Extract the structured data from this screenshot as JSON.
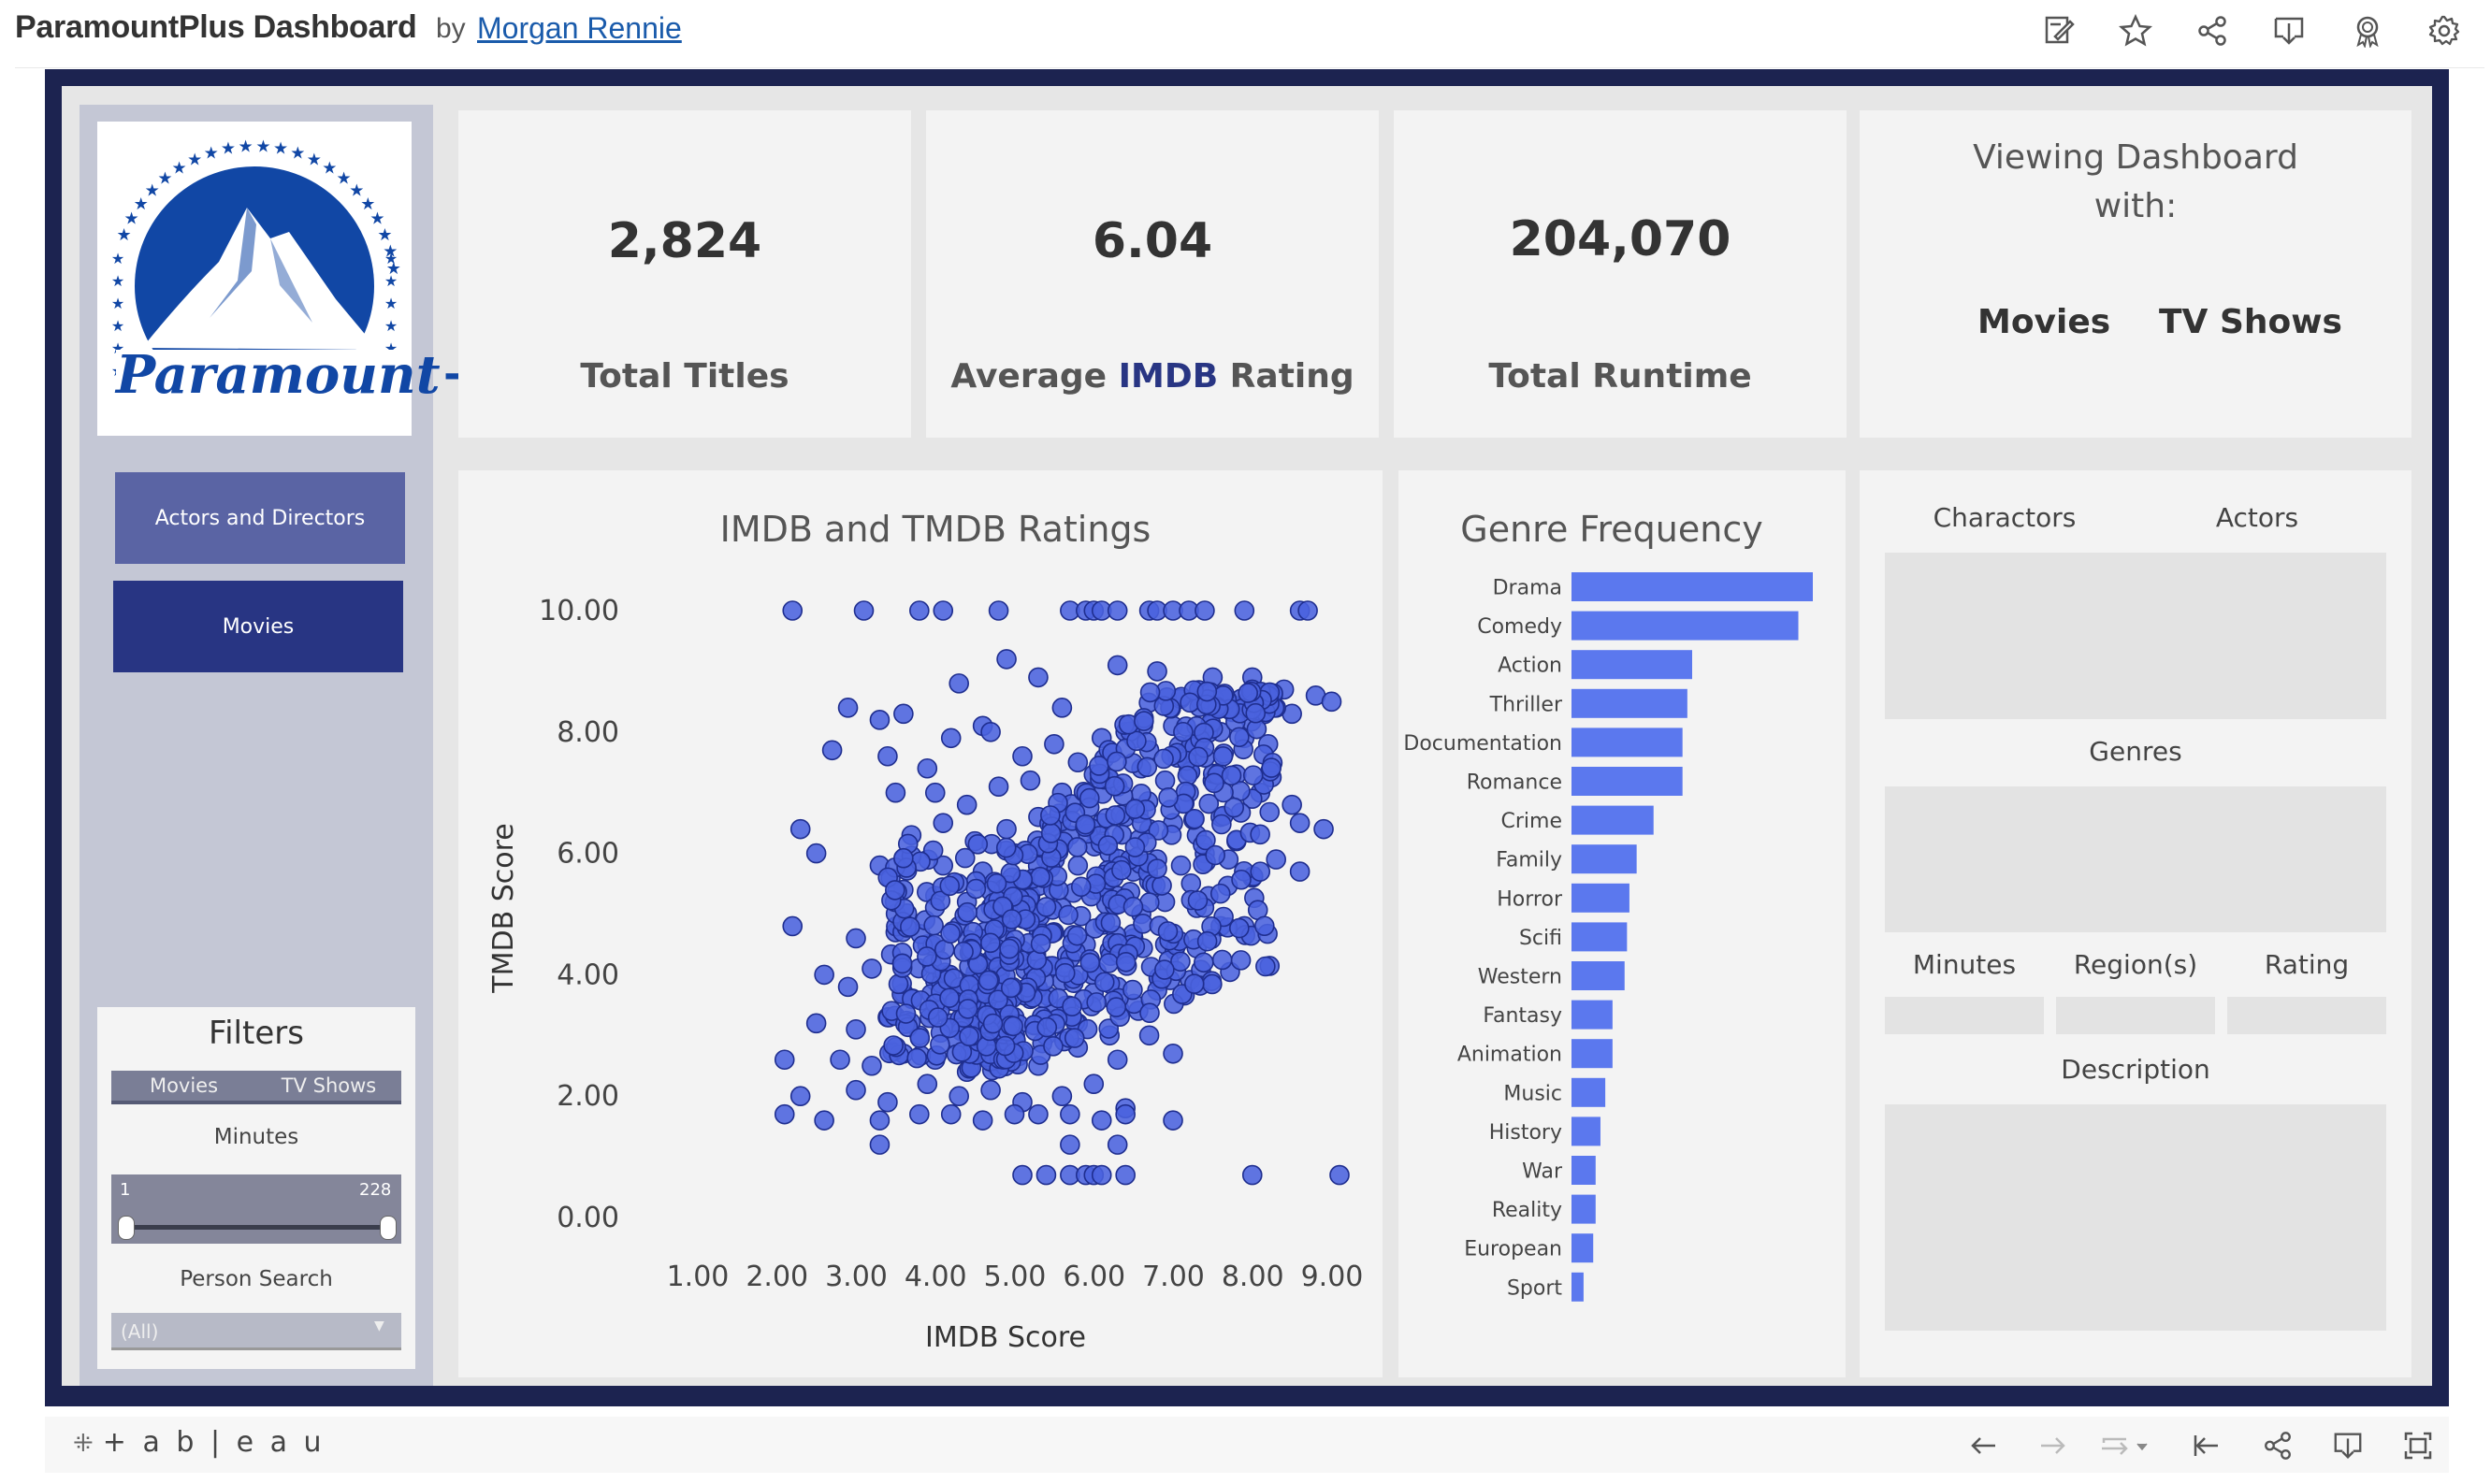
{
  "header": {
    "title": "ParamountPlus Dashboard",
    "by": "by",
    "author": "Morgan Rennie",
    "icons": [
      "edit-icon",
      "star-icon",
      "share-icon",
      "download-icon",
      "badge-icon",
      "settings-icon"
    ]
  },
  "sidebar": {
    "logo_text": "Paramount+",
    "nav": {
      "actors_directors": "Actors and Directors",
      "movies": "Movies"
    },
    "filters": {
      "title": "Filters",
      "tabs": [
        "Movies",
        "TV Shows"
      ],
      "minutes_label": "Minutes",
      "minutes_min": "1",
      "minutes_max": "228",
      "person_label": "Person Search",
      "person_value": "(All)"
    }
  },
  "kpis": {
    "total_titles": {
      "value": "2,824",
      "label": "Total Titles"
    },
    "avg_imdb": {
      "value": "6.04",
      "label_pre": "Average ",
      "label_em": "IMDB",
      "label_post": " Rating"
    },
    "total_runtime": {
      "value": "204,070",
      "label": "Total Runtime"
    }
  },
  "viewing": {
    "title_line1": "Viewing Dashboard",
    "title_line2": "with:",
    "option_movies": "Movies",
    "option_tv": "TV Shows"
  },
  "detail": {
    "charactors": "Charactors",
    "actors": "Actors",
    "genres": "Genres",
    "minutes": "Minutes",
    "regions": "Region(s)",
    "rating": "Rating",
    "description": "Description"
  },
  "chart_data": [
    {
      "type": "scatter",
      "title": "IMDB and TMDB Ratings",
      "xlabel": "IMDB Score",
      "ylabel": "TMDB Score",
      "xlim": [
        1,
        9
      ],
      "ylim": [
        0,
        10
      ],
      "x_ticks": [
        "1.00",
        "2.00",
        "3.00",
        "4.00",
        "5.00",
        "6.00",
        "7.00",
        "8.00",
        "9.00"
      ],
      "y_ticks": [
        "0.00",
        "2.00",
        "4.00",
        "6.00",
        "8.00",
        "10.00"
      ],
      "color": "#4a62de",
      "points": [
        [
          2.1,
          10
        ],
        [
          3.0,
          10
        ],
        [
          3.7,
          10
        ],
        [
          4.0,
          10
        ],
        [
          4.7,
          10
        ],
        [
          5.6,
          10
        ],
        [
          5.8,
          10
        ],
        [
          5.9,
          10
        ],
        [
          6.0,
          10
        ],
        [
          6.2,
          10
        ],
        [
          6.6,
          10
        ],
        [
          6.7,
          10
        ],
        [
          6.9,
          10
        ],
        [
          7.1,
          10
        ],
        [
          7.3,
          10
        ],
        [
          7.8,
          10
        ],
        [
          8.5,
          10
        ],
        [
          8.6,
          10
        ],
        [
          2.8,
          8.4
        ],
        [
          3.2,
          8.2
        ],
        [
          3.5,
          8.3
        ],
        [
          4.2,
          8.8
        ],
        [
          4.5,
          8.1
        ],
        [
          4.8,
          9.2
        ],
        [
          5.2,
          8.9
        ],
        [
          5.5,
          8.4
        ],
        [
          6.2,
          9.1
        ],
        [
          6.7,
          9.0
        ],
        [
          7.4,
          8.9
        ],
        [
          7.9,
          8.9
        ],
        [
          8.3,
          8.7
        ],
        [
          8.7,
          8.6
        ],
        [
          8.9,
          8.5
        ],
        [
          8.4,
          8.3
        ],
        [
          2.6,
          7.7
        ],
        [
          3.3,
          7.6
        ],
        [
          3.8,
          7.4
        ],
        [
          4.1,
          7.9
        ],
        [
          4.6,
          8.0
        ],
        [
          5.0,
          7.6
        ],
        [
          5.4,
          7.8
        ],
        [
          5.7,
          7.5
        ],
        [
          6.0,
          7.9
        ],
        [
          6.3,
          8.0
        ],
        [
          6.6,
          7.7
        ],
        [
          6.9,
          8.1
        ],
        [
          7.2,
          7.7
        ],
        [
          7.5,
          8.0
        ],
        [
          7.8,
          7.9
        ],
        [
          8.1,
          7.8
        ],
        [
          8.2,
          8.4
        ],
        [
          3.4,
          7.0
        ],
        [
          3.9,
          7.0
        ],
        [
          4.3,
          6.8
        ],
        [
          4.7,
          7.1
        ],
        [
          5.1,
          7.2
        ],
        [
          5.5,
          7.0
        ],
        [
          5.9,
          7.3
        ],
        [
          6.2,
          7.1
        ],
        [
          6.5,
          7.4
        ],
        [
          6.8,
          7.2
        ],
        [
          7.1,
          7.0
        ],
        [
          7.4,
          7.2
        ],
        [
          7.7,
          7.3
        ],
        [
          8.0,
          7.0
        ],
        [
          8.4,
          6.8
        ],
        [
          3.6,
          6.3
        ],
        [
          4.0,
          6.5
        ],
        [
          4.4,
          6.2
        ],
        [
          4.8,
          6.4
        ],
        [
          5.2,
          6.6
        ],
        [
          5.6,
          6.3
        ],
        [
          6.0,
          6.5
        ],
        [
          6.3,
          6.6
        ],
        [
          6.6,
          6.4
        ],
        [
          6.9,
          6.5
        ],
        [
          7.2,
          6.3
        ],
        [
          7.5,
          6.6
        ],
        [
          7.7,
          6.2
        ],
        [
          8.5,
          6.5
        ],
        [
          8.8,
          6.4
        ],
        [
          7.9,
          6.9
        ],
        [
          2.4,
          6.0
        ],
        [
          3.5,
          5.9
        ],
        [
          4.0,
          5.8
        ],
        [
          4.5,
          5.7
        ],
        [
          4.9,
          6.0
        ],
        [
          5.3,
          5.9
        ],
        [
          5.7,
          5.8
        ],
        [
          6.1,
          6.0
        ],
        [
          6.4,
          5.7
        ],
        [
          6.7,
          5.9
        ],
        [
          7.0,
          5.8
        ],
        [
          7.3,
          6.0
        ],
        [
          7.6,
          5.9
        ],
        [
          7.9,
          5.6
        ],
        [
          8.2,
          5.9
        ],
        [
          8.5,
          5.7
        ],
        [
          2.2,
          6.4
        ],
        [
          3.2,
          5.8
        ],
        [
          3.5,
          5.4
        ],
        [
          3.9,
          5.3
        ],
        [
          4.3,
          5.2
        ],
        [
          4.7,
          5.4
        ],
        [
          5.1,
          5.3
        ],
        [
          5.5,
          5.1
        ],
        [
          5.9,
          5.4
        ],
        [
          6.2,
          5.3
        ],
        [
          6.5,
          5.0
        ],
        [
          6.8,
          5.2
        ],
        [
          7.2,
          5.1
        ],
        [
          7.5,
          4.8
        ],
        [
          7.8,
          4.8
        ],
        [
          2.1,
          4.8
        ],
        [
          2.9,
          4.6
        ],
        [
          3.4,
          4.7
        ],
        [
          3.8,
          4.5
        ],
        [
          4.2,
          4.8
        ],
        [
          4.6,
          4.6
        ],
        [
          5.0,
          4.4
        ],
        [
          5.4,
          4.7
        ],
        [
          5.8,
          4.5
        ],
        [
          6.1,
          4.4
        ],
        [
          6.4,
          4.6
        ],
        [
          6.8,
          4.5
        ],
        [
          2.5,
          4.0
        ],
        [
          2.8,
          3.8
        ],
        [
          3.1,
          4.1
        ],
        [
          3.5,
          3.7
        ],
        [
          3.9,
          3.9
        ],
        [
          4.3,
          3.8
        ],
        [
          4.7,
          4.0
        ],
        [
          5.1,
          3.6
        ],
        [
          5.5,
          3.9
        ],
        [
          5.9,
          3.7
        ],
        [
          6.2,
          3.8
        ],
        [
          2.4,
          3.2
        ],
        [
          2.9,
          3.1
        ],
        [
          3.3,
          3.3
        ],
        [
          3.7,
          3.0
        ],
        [
          4.1,
          3.2
        ],
        [
          4.5,
          3.1
        ],
        [
          4.9,
          3.3
        ],
        [
          5.3,
          3.0
        ],
        [
          5.7,
          3.2
        ],
        [
          6.1,
          3.0
        ],
        [
          6.6,
          3.0
        ],
        [
          2.0,
          2.6
        ],
        [
          2.7,
          2.6
        ],
        [
          3.1,
          2.5
        ],
        [
          3.5,
          2.7
        ],
        [
          3.9,
          2.6
        ],
        [
          4.3,
          2.4
        ],
        [
          4.7,
          2.7
        ],
        [
          5.2,
          2.5
        ],
        [
          5.7,
          2.8
        ],
        [
          6.2,
          2.6
        ],
        [
          6.9,
          2.7
        ],
        [
          2.2,
          2.0
        ],
        [
          2.9,
          2.1
        ],
        [
          3.3,
          1.9
        ],
        [
          3.8,
          2.2
        ],
        [
          4.2,
          2.0
        ],
        [
          4.6,
          2.1
        ],
        [
          5.0,
          1.9
        ],
        [
          5.5,
          2.0
        ],
        [
          5.9,
          2.2
        ],
        [
          6.3,
          1.8
        ],
        [
          2.0,
          1.7
        ],
        [
          2.5,
          1.6
        ],
        [
          3.2,
          1.6
        ],
        [
          3.7,
          1.7
        ],
        [
          4.1,
          1.7
        ],
        [
          4.5,
          1.6
        ],
        [
          4.9,
          1.7
        ],
        [
          5.2,
          1.7
        ],
        [
          5.6,
          1.7
        ],
        [
          6.0,
          1.6
        ],
        [
          6.3,
          1.7
        ],
        [
          6.9,
          1.6
        ],
        [
          3.2,
          1.2
        ],
        [
          5.6,
          1.2
        ],
        [
          6.2,
          1.2
        ],
        [
          5.0,
          0.7
        ],
        [
          5.3,
          0.7
        ],
        [
          5.6,
          0.7
        ],
        [
          5.8,
          0.7
        ],
        [
          5.9,
          0.7
        ],
        [
          6.0,
          0.7
        ],
        [
          6.3,
          0.7
        ],
        [
          7.9,
          0.7
        ],
        [
          9.0,
          0.7
        ]
      ]
    },
    {
      "type": "bar",
      "orientation": "horizontal",
      "title": "Genre Frequency",
      "color": "#5b78ee",
      "categories": [
        "Drama",
        "Comedy",
        "Action",
        "Thriller",
        "Documentation",
        "Romance",
        "Crime",
        "Family",
        "Horror",
        "Scifi",
        "Western",
        "Fantasy",
        "Animation",
        "Music",
        "History",
        "War",
        "Reality",
        "European",
        "Sport"
      ],
      "values": [
        100,
        94,
        50,
        48,
        46,
        46,
        34,
        27,
        24,
        23,
        22,
        17,
        17,
        14,
        12,
        10,
        10,
        9,
        5
      ],
      "xlim": [
        0,
        100
      ]
    }
  ],
  "footer": {
    "logo": "+ a b | e a u",
    "icons": [
      "undo-icon",
      "redo-icon",
      "revert-icon",
      "revert-start-icon",
      "share-icon",
      "download-icon",
      "fullscreen-icon"
    ]
  }
}
